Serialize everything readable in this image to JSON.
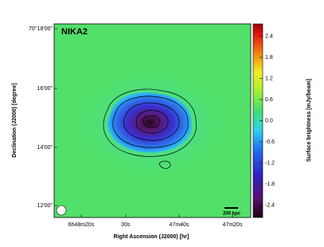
{
  "chart_data": {
    "type": "image",
    "title": "NIKA2",
    "scale_label": "200 kpc",
    "xlabel": "Right Ascension (J2000) [hr]",
    "ylabel": "Declination (J2000) [degree]",
    "xtick_labels": [
      "6h48m20s",
      "00s",
      "47m40s",
      "47m20s"
    ],
    "ytick_labels": [
      "70°18'00\"",
      "16'00\"",
      "14'00\"",
      "12'00\""
    ],
    "colorbar": {
      "label": "Surface brightness [mJy/beam]",
      "ylim": [
        -2.75,
        2.75
      ],
      "yticks": [
        2.4,
        1.8,
        1.2,
        0.6,
        {
          "value": 0,
          "label": "0.0"
        },
        -0.6,
        -1.2,
        -1.8,
        -2.4
      ]
    }
  }
}
